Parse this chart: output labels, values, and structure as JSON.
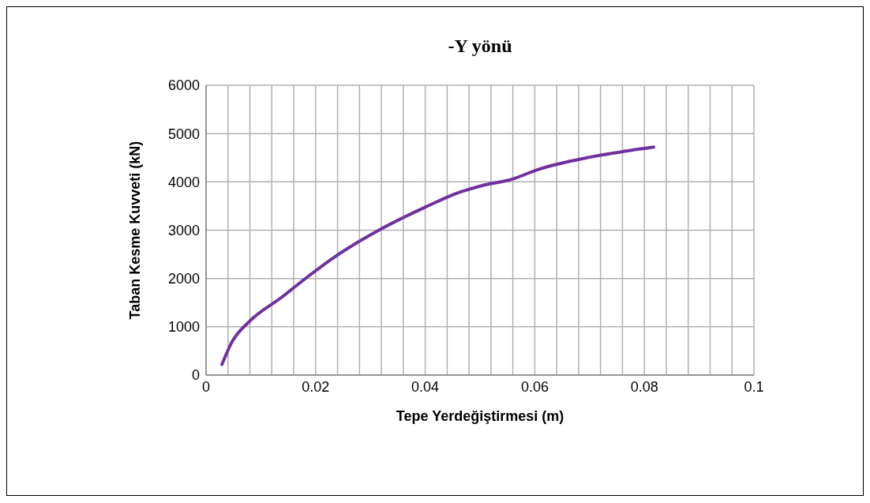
{
  "chart_data": {
    "type": "line",
    "title": "-Y yönü",
    "xlabel": "Tepe Yerdeğiştirmesi (m)",
    "ylabel": "Taban Kesme Kuvveti (kN)",
    "x": [
      0.0029,
      0.0047,
      0.008,
      0.0138,
      0.0186,
      0.0239,
      0.032,
      0.0397,
      0.0464,
      0.0503,
      0.056,
      0.0604,
      0.0695,
      0.0762,
      0.0817
    ],
    "series": [
      {
        "color": "#7030a0",
        "values": [
          220,
          680,
          1120,
          1610,
          2040,
          2480,
          3030,
          3460,
          3790,
          3920,
          4060,
          4250,
          4500,
          4630,
          4720
        ]
      }
    ],
    "xlim": [
      0,
      0.1
    ],
    "xticks": [
      0,
      {
        "value": 0.004,
        "label": null
      },
      {
        "value": 0.008,
        "label": null
      },
      {
        "value": 0.012,
        "label": null
      },
      {
        "value": 0.016,
        "label": null
      },
      0.02,
      {
        "value": 0.024,
        "label": null
      },
      {
        "value": 0.028,
        "label": null
      },
      {
        "value": 0.032,
        "label": null
      },
      {
        "value": 0.036,
        "label": null
      },
      0.04,
      {
        "value": 0.044,
        "label": null
      },
      {
        "value": 0.048,
        "label": null
      },
      {
        "value": 0.052,
        "label": null
      },
      {
        "value": 0.056,
        "label": null
      },
      0.06,
      {
        "value": 0.064,
        "label": null
      },
      {
        "value": 0.068,
        "label": null
      },
      {
        "value": 0.072,
        "label": null
      },
      {
        "value": 0.076,
        "label": null
      },
      0.08,
      {
        "value": 0.084,
        "label": null
      },
      {
        "value": 0.088,
        "label": null
      },
      {
        "value": 0.092,
        "label": null
      },
      {
        "value": 0.096,
        "label": null
      },
      0.1
    ],
    "ylim": [
      0,
      6000
    ],
    "yticks": [
      0,
      1000,
      2000,
      3000,
      4000,
      5000,
      6000
    ],
    "grid": true,
    "marker": "none",
    "line_style": "solid"
  }
}
